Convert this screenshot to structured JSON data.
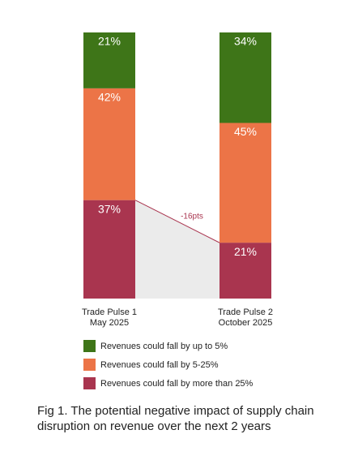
{
  "chart_data": {
    "type": "stacked_bar",
    "categories": [
      [
        "Trade Pulse 1",
        "May 2025"
      ],
      [
        "Trade Pulse 2",
        "October 2025"
      ]
    ],
    "series": [
      {
        "name": "Revenues could fall by up to 5%",
        "color": "#3e7518",
        "values": [
          21,
          34
        ],
        "value_labels": [
          "21%",
          "34%"
        ]
      },
      {
        "name": "Revenues could fall by 5-25%",
        "color": "#ec7447",
        "values": [
          42,
          45
        ],
        "value_labels": [
          "42%",
          "45%"
        ]
      },
      {
        "name": "Revenues could fall by more than 25%",
        "color": "#a9354f",
        "values": [
          37,
          21
        ],
        "value_labels": [
          "37%",
          "21%"
        ]
      }
    ],
    "ylim": [
      0,
      100
    ],
    "annotation": "-16pts",
    "caption": "Fig 1. The potential negative impact of supply chain disruption on revenue over the next 2 years"
  }
}
